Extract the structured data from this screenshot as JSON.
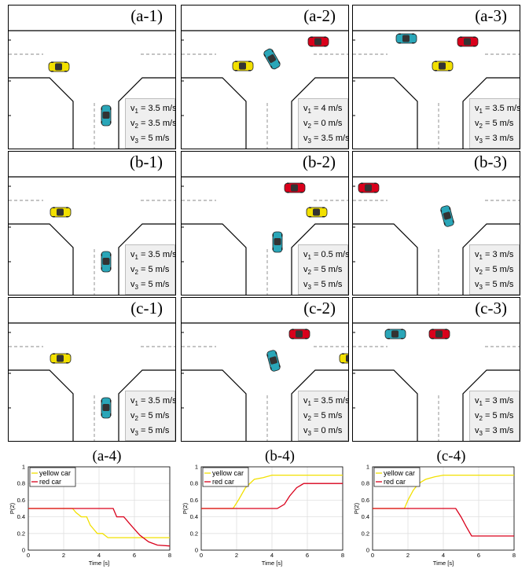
{
  "panels": [
    {
      "label": "(a-1)",
      "speeds": [
        "3.5 m/s",
        "3.5 m/s",
        "5 m/s"
      ]
    },
    {
      "label": "(a-2)",
      "speeds": [
        "4 m/s",
        "0 m/s",
        "3.5 m/s"
      ]
    },
    {
      "label": "(a-3)",
      "speeds": [
        "3.5 m/s",
        "5 m/s",
        "3 m/s"
      ]
    },
    {
      "label": "(b-1)",
      "speeds": [
        "3.5 m/s",
        "5 m/s",
        "5 m/s"
      ]
    },
    {
      "label": "(b-2)",
      "speeds": [
        "0.5 m/s",
        "5 m/s",
        "5 m/s"
      ]
    },
    {
      "label": "(b-3)",
      "speeds": [
        "3 m/s",
        "5 m/s",
        "5 m/s"
      ]
    },
    {
      "label": "(c-1)",
      "speeds": [
        "3.5 m/s",
        "5 m/s",
        "5 m/s"
      ]
    },
    {
      "label": "(c-2)",
      "speeds": [
        "3.5 m/s",
        "5 m/s",
        "0 m/s"
      ]
    },
    {
      "label": "(c-3)",
      "speeds": [
        "3 m/s",
        "5 m/s",
        "3 m/s"
      ]
    }
  ],
  "speed_vars": [
    "v1",
    "v2",
    "v3"
  ],
  "colors": {
    "yellow_car": "#f2e000",
    "red_car": "#d9001b",
    "blue_car": "#2aa6b8"
  },
  "chart_data": [
    {
      "type": "line",
      "label": "(a-4)",
      "xlabel": "Time [s]",
      "ylabel": "P(2)",
      "xlim": [
        0,
        8
      ],
      "ylim": [
        0,
        1
      ],
      "xticks": [
        0,
        2,
        4,
        6,
        8
      ],
      "yticks": [
        0,
        0.2,
        0.4,
        0.6,
        0.8,
        1
      ],
      "grid": true,
      "legend": "top-left",
      "series": [
        {
          "name": "yellow car",
          "color": "#f2e000",
          "x": [
            0,
            2.5,
            2.7,
            3.0,
            3.3,
            3.5,
            3.7,
            3.9,
            4.2,
            4.5,
            8
          ],
          "y": [
            0.5,
            0.5,
            0.45,
            0.4,
            0.4,
            0.3,
            0.25,
            0.2,
            0.2,
            0.15,
            0.15
          ]
        },
        {
          "name": "red car",
          "color": "#d9001b",
          "x": [
            0,
            4.8,
            5.0,
            5.4,
            5.8,
            6.3,
            6.8,
            7.3,
            8
          ],
          "y": [
            0.5,
            0.5,
            0.4,
            0.4,
            0.3,
            0.18,
            0.1,
            0.06,
            0.05
          ]
        }
      ]
    },
    {
      "type": "line",
      "label": "(b-4)",
      "xlabel": "Time [s]",
      "ylabel": "P(2)",
      "xlim": [
        0,
        8
      ],
      "ylim": [
        0,
        1
      ],
      "xticks": [
        0,
        2,
        4,
        6,
        8
      ],
      "yticks": [
        0,
        0.2,
        0.4,
        0.6,
        0.8,
        1
      ],
      "grid": true,
      "legend": "top-left",
      "series": [
        {
          "name": "yellow car",
          "color": "#f2e000",
          "x": [
            0,
            1.8,
            2.1,
            2.5,
            3.0,
            3.5,
            4.0,
            4.5,
            8
          ],
          "y": [
            0.5,
            0.5,
            0.6,
            0.75,
            0.85,
            0.87,
            0.9,
            0.9,
            0.9
          ]
        },
        {
          "name": "red car",
          "color": "#d9001b",
          "x": [
            0,
            4.3,
            4.7,
            5.0,
            5.4,
            5.8,
            6.0,
            8
          ],
          "y": [
            0.5,
            0.5,
            0.55,
            0.65,
            0.75,
            0.8,
            0.8,
            0.8
          ]
        }
      ]
    },
    {
      "type": "line",
      "label": "(c-4)",
      "xlabel": "Time [s]",
      "ylabel": "P(2)",
      "xlim": [
        0,
        8
      ],
      "ylim": [
        0,
        1
      ],
      "xticks": [
        0,
        2,
        4,
        6,
        8
      ],
      "yticks": [
        0,
        0.2,
        0.4,
        0.6,
        0.8,
        1
      ],
      "grid": true,
      "legend": "top-left",
      "series": [
        {
          "name": "yellow car",
          "color": "#f2e000",
          "x": [
            0,
            1.8,
            2.0,
            2.3,
            2.6,
            3.0,
            3.5,
            4.0,
            8
          ],
          "y": [
            0.5,
            0.5,
            0.6,
            0.72,
            0.8,
            0.85,
            0.88,
            0.9,
            0.9
          ]
        },
        {
          "name": "red car",
          "color": "#d9001b",
          "x": [
            0,
            4.7,
            5.0,
            5.3,
            5.6,
            6.0,
            8
          ],
          "y": [
            0.5,
            0.5,
            0.4,
            0.28,
            0.17,
            0.17,
            0.17
          ]
        }
      ]
    }
  ]
}
